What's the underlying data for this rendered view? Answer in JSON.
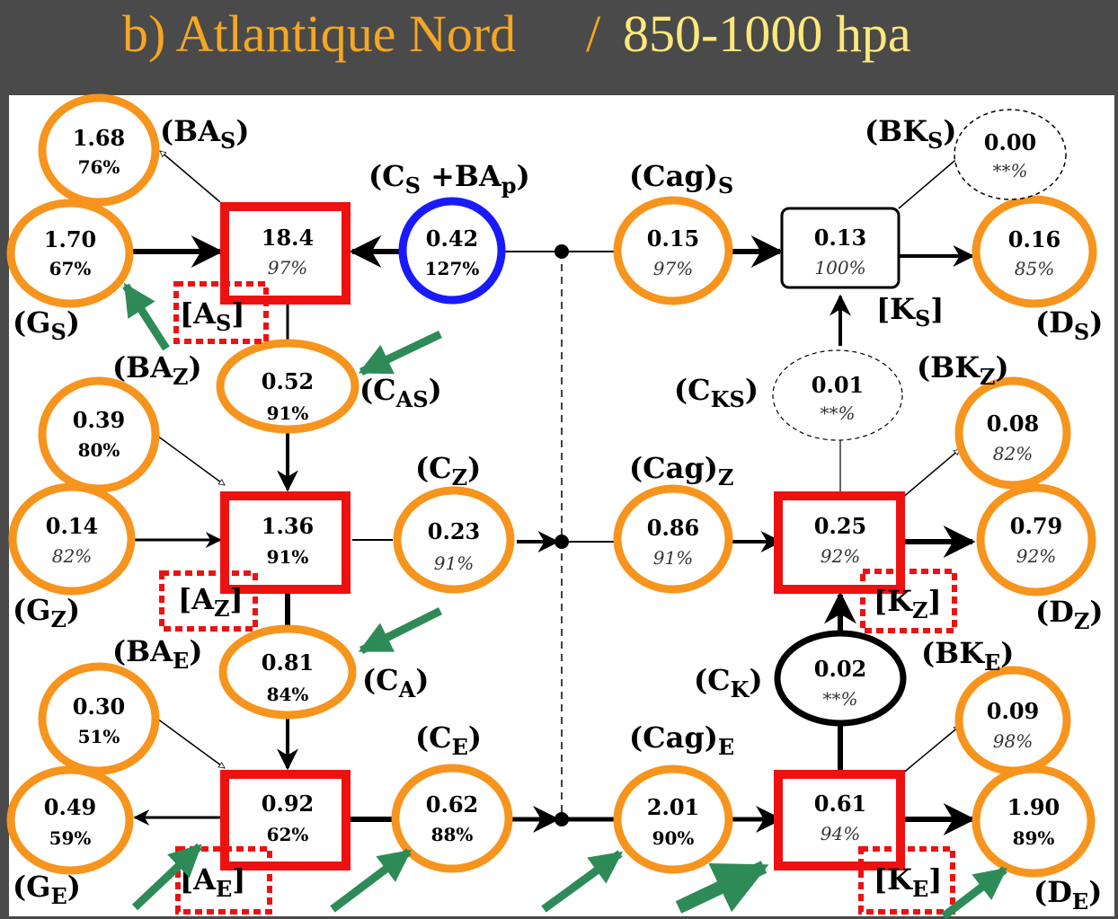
{
  "title": {
    "part1": "b) Atlantique Nord",
    "slash": "/",
    "part2": "850-1000 hpa"
  },
  "colors": {
    "header_bg": "#4a4a4a",
    "title_orange": "#f5a623",
    "title_yellow": "#ffe87a",
    "highlight_orange": "#f7941d",
    "highlight_blue": "#1a1aff",
    "highlight_red": "#ee1111",
    "arrow_green": "#2e8b57"
  },
  "nodes": {
    "BA_S": {
      "value": "1.68",
      "pct": "76%"
    },
    "G_S": {
      "value": "1.70",
      "pct": "67%"
    },
    "A_S": {
      "value": "18.4",
      "pct": "97%"
    },
    "CS_BAp": {
      "value": "0.42",
      "pct": "127%"
    },
    "Cag_S": {
      "value": "0.15",
      "pct": "97%"
    },
    "K_S": {
      "value": "0.13",
      "pct": "100%"
    },
    "D_S": {
      "value": "0.16",
      "pct": "85%"
    },
    "BK_S": {
      "value": "0.00",
      "pct": "**%"
    },
    "C_AS": {
      "value": "0.52",
      "pct": "91%"
    },
    "C_KS": {
      "value": "0.01",
      "pct": "**%"
    },
    "BA_Z": {
      "value": "0.39",
      "pct": "80%"
    },
    "BK_Z": {
      "value": "0.08",
      "pct": "82%"
    },
    "G_Z": {
      "value": "0.14",
      "pct": "82%"
    },
    "A_Z": {
      "value": "1.36",
      "pct": "91%"
    },
    "C_Z": {
      "value": "0.23",
      "pct": "91%"
    },
    "Cag_Z": {
      "value": "0.86",
      "pct": "91%"
    },
    "K_Z": {
      "value": "0.25",
      "pct": "92%"
    },
    "D_Z": {
      "value": "0.79",
      "pct": "92%"
    },
    "C_A": {
      "value": "0.81",
      "pct": "84%"
    },
    "C_K": {
      "value": "0.02",
      "pct": "**%"
    },
    "BA_E": {
      "value": "0.30",
      "pct": "51%"
    },
    "BK_E": {
      "value": "0.09",
      "pct": "98%"
    },
    "G_E": {
      "value": "0.49",
      "pct": "59%"
    },
    "A_E": {
      "value": "0.92",
      "pct": "62%"
    },
    "C_E": {
      "value": "0.62",
      "pct": "88%"
    },
    "Cag_E": {
      "value": "2.01",
      "pct": "90%"
    },
    "K_E": {
      "value": "0.61",
      "pct": "94%"
    },
    "D_E": {
      "value": "1.90",
      "pct": "89%"
    }
  },
  "labels": {
    "BA_S": {
      "main": "(BA",
      "sub": "S",
      "close": ")"
    },
    "CS_BAp": {
      "main": "(C",
      "sub": "S",
      "mid": " +BA",
      "sub2": "p",
      "close": ")"
    },
    "Cag_S": {
      "main": "(Cag)",
      "sub": "S",
      "close": ""
    },
    "BK_S": {
      "main": "(BK",
      "sub": "S",
      "close": ")"
    },
    "G_S": {
      "main": "(G",
      "sub": "S",
      "close": ")"
    },
    "A_S": {
      "main": "[A",
      "sub": "S",
      "close": "]"
    },
    "K_S": {
      "main": "[K",
      "sub": "S",
      "close": "]"
    },
    "D_S": {
      "main": "(D",
      "sub": "S",
      "close": ")"
    },
    "BA_Z": {
      "main": "(BA",
      "sub": "Z",
      "close": ")"
    },
    "C_AS": {
      "main": "(C",
      "sub": "AS",
      "close": ")"
    },
    "C_KS": {
      "main": "(C",
      "sub": "KS",
      "close": ")"
    },
    "BK_Z": {
      "main": "(BK",
      "sub": "Z",
      "close": ")"
    },
    "C_Z": {
      "main": "(C",
      "sub": "Z",
      "close": ")"
    },
    "Cag_Z": {
      "main": "(Cag)",
      "sub": "Z",
      "close": ""
    },
    "G_Z": {
      "main": "(G",
      "sub": "Z",
      "close": ")"
    },
    "A_Z": {
      "main": "[A",
      "sub": "Z",
      "close": "]"
    },
    "K_Z": {
      "main": "[K",
      "sub": "Z",
      "close": "]"
    },
    "D_Z": {
      "main": "(D",
      "sub": "Z",
      "close": ")"
    },
    "BA_E": {
      "main": "(BA",
      "sub": "E",
      "close": ")"
    },
    "C_A": {
      "main": "(C",
      "sub": "A",
      "close": ")"
    },
    "C_K": {
      "main": "(C",
      "sub": "K",
      "close": ")"
    },
    "BK_E": {
      "main": "(BK",
      "sub": "E",
      "close": ")"
    },
    "C_E": {
      "main": "(C",
      "sub": "E",
      "close": ")"
    },
    "Cag_E": {
      "main": "(Cag)",
      "sub": "E",
      "close": ""
    },
    "G_E": {
      "main": "(G",
      "sub": "E",
      "close": ")"
    },
    "A_E": {
      "main": "[A",
      "sub": "E",
      "close": "]"
    },
    "K_E": {
      "main": "[K",
      "sub": "E",
      "close": "]"
    },
    "D_E": {
      "main": "(D",
      "sub": "E",
      "close": ")"
    }
  }
}
